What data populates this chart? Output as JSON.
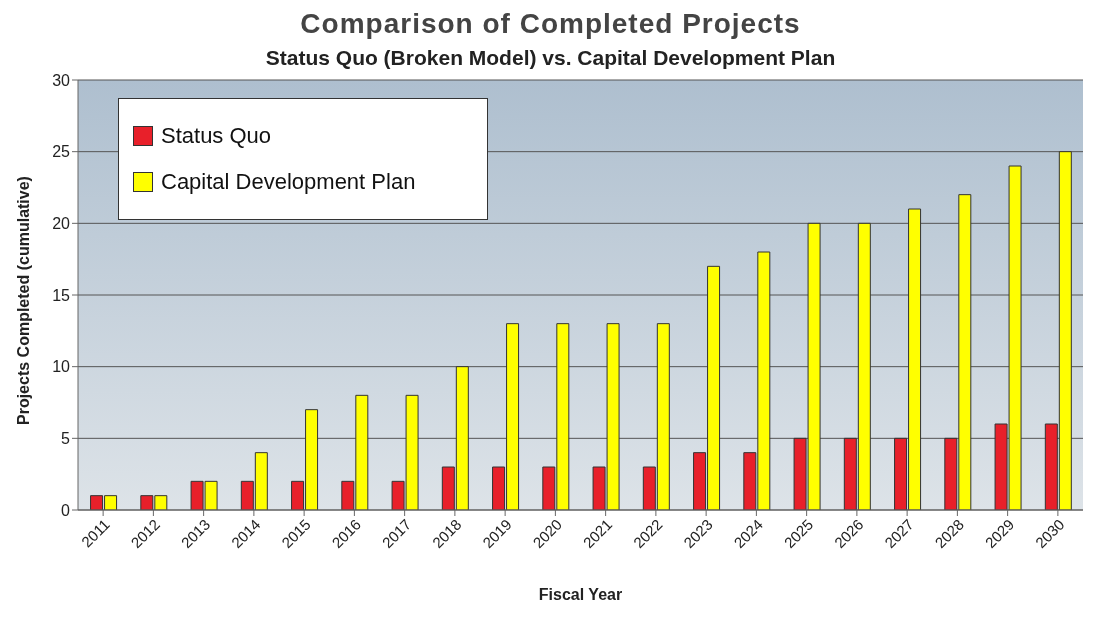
{
  "chart_data": {
    "type": "bar",
    "title": "Comparison of Completed Projects",
    "subtitle": "Status Quo (Broken Model) vs. Capital Development Plan",
    "xlabel": "Fiscal Year",
    "ylabel": "Projects Completed (cumulative)",
    "categories": [
      "2011",
      "2012",
      "2013",
      "2014",
      "2015",
      "2016",
      "2017",
      "2018",
      "2019",
      "2020",
      "2021",
      "2022",
      "2023",
      "2024",
      "2025",
      "2026",
      "2027",
      "2028",
      "2029",
      "2030"
    ],
    "series": [
      {
        "name": "Status Quo",
        "color": "#e8202a",
        "values": [
          1,
          1,
          2,
          2,
          2,
          2,
          2,
          3,
          3,
          3,
          3,
          3,
          4,
          4,
          5,
          5,
          5,
          5,
          6,
          6
        ]
      },
      {
        "name": "Capital Development Plan",
        "color": "#ffff00",
        "values": [
          1,
          1,
          2,
          4,
          7,
          8,
          8,
          10,
          13,
          13,
          13,
          13,
          17,
          18,
          20,
          20,
          21,
          22,
          24,
          25
        ]
      }
    ],
    "ylim": [
      0,
      30
    ],
    "yticks": [
      0,
      5,
      10,
      15,
      20,
      25,
      30
    ],
    "grid": "y",
    "legend": "top left"
  }
}
